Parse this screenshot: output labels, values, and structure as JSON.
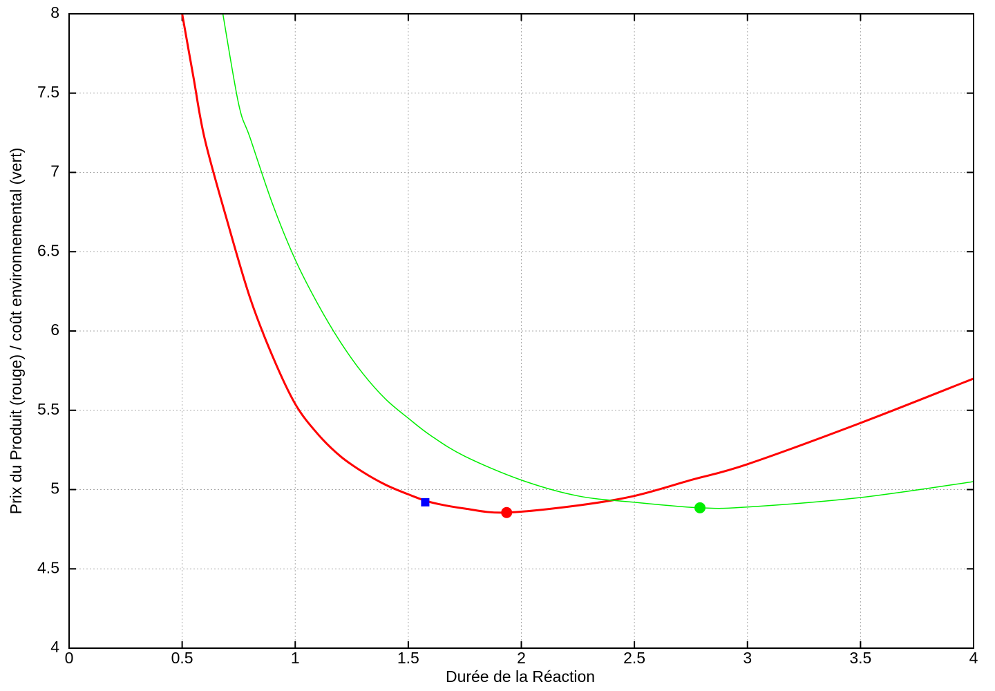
{
  "chart_data": {
    "type": "line",
    "xlabel": "Durée de la Réaction",
    "ylabel": "Prix du Produit (rouge) / coût environnemental (vert)",
    "xlim": [
      0,
      4
    ],
    "xticks": [
      0,
      0.5,
      1,
      1.5,
      2,
      2.5,
      3,
      3.5,
      4
    ],
    "ylim": [
      4,
      8
    ],
    "yticks": [
      4,
      4.5,
      5,
      5.5,
      6,
      6.5,
      7,
      7.5,
      8
    ],
    "grid": true,
    "series": [
      {
        "color": "#ff0000",
        "x": [
          0.5,
          0.55,
          0.6,
          0.7,
          0.8,
          0.9,
          1,
          1.1,
          1.2,
          1.3,
          1.4,
          1.5,
          1.6,
          1.75,
          1.93,
          2.25,
          2.5,
          2.75,
          3,
          3.5,
          4
        ],
        "values": [
          8,
          7.6,
          7.21,
          6.69,
          6.21,
          5.84,
          5.54,
          5.35,
          5.21,
          5.11,
          5.03,
          4.97,
          4.92,
          4.88,
          4.855,
          4.9,
          4.96,
          5.06,
          5.16,
          5.42,
          5.7
        ]
      },
      {
        "color": "#00ee00",
        "x": [
          0.68,
          0.75,
          0.8,
          0.9,
          1,
          1.1,
          1.2,
          1.3,
          1.4,
          1.5,
          1.6,
          1.75,
          2,
          2.25,
          2.5,
          2.79,
          3,
          3.5,
          4
        ],
        "values": [
          8,
          7.43,
          7.22,
          6.8,
          6.45,
          6.17,
          5.93,
          5.73,
          5.57,
          5.45,
          5.34,
          5.21,
          5.06,
          4.96,
          4.92,
          4.885,
          4.89,
          4.95,
          5.05
        ]
      }
    ],
    "points": [
      {
        "x": 1.575,
        "y": 4.92,
        "color": "#0000ff",
        "marker": "square"
      },
      {
        "x": 1.935,
        "y": 4.855,
        "color": "#ff0000",
        "marker": "circle"
      },
      {
        "x": 2.79,
        "y": 4.885,
        "color": "#00ee00",
        "marker": "circle"
      }
    ]
  }
}
